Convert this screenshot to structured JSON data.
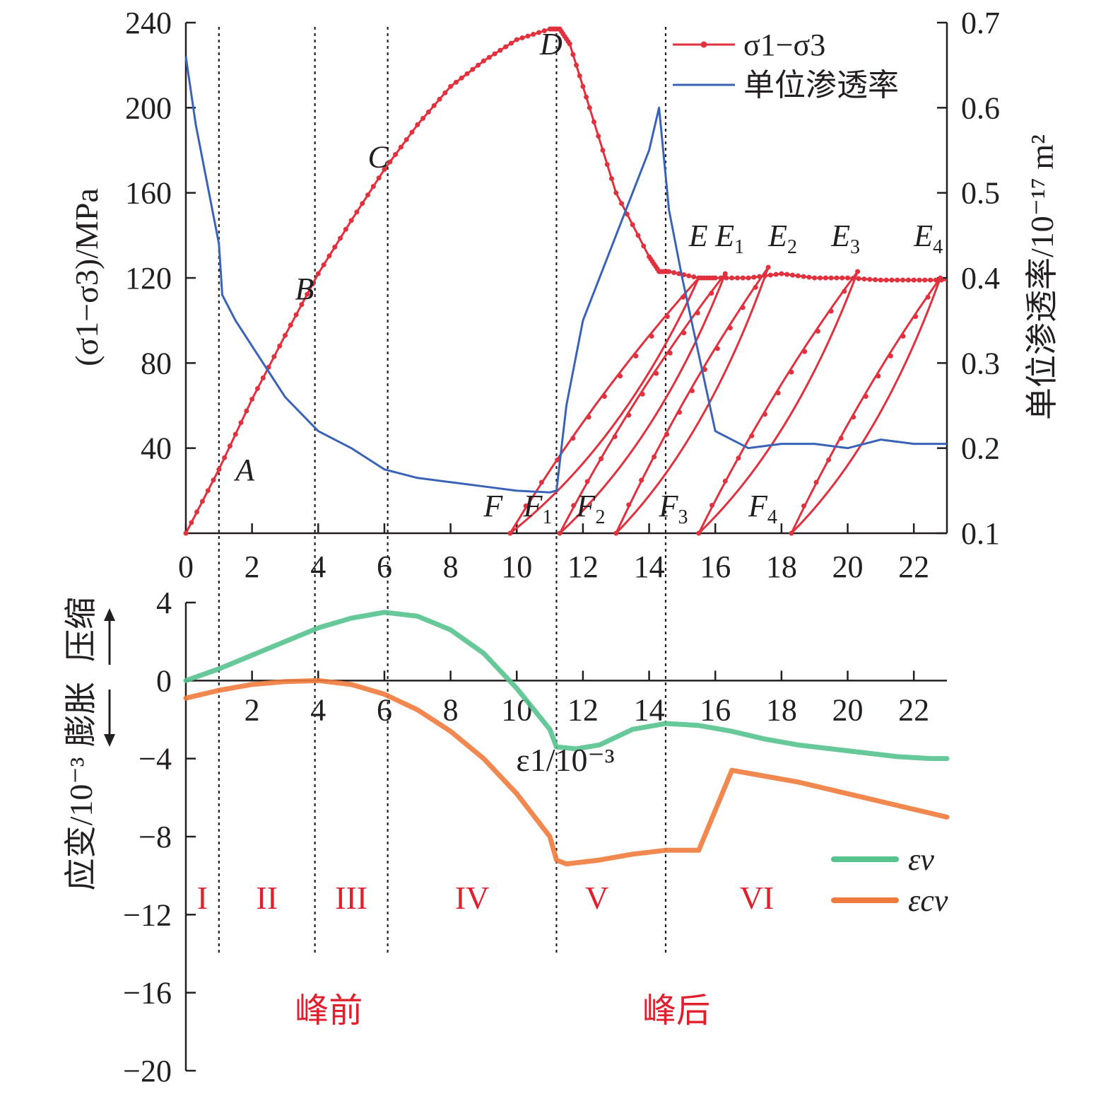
{
  "colors": {
    "deviatoric": "#e0313e",
    "permeability": "#3a63b8",
    "ev": "#56c38e",
    "ecv": "#ee7b3d",
    "axis": "#231f20",
    "label_red": "#e0202e"
  },
  "chart_data": [
    {
      "id": "stress_permeability",
      "type": "line",
      "xlabel": "ε1/10⁻³",
      "ylabel_left": "(σ1−σ3)/MPa",
      "ylabel_right": "单位渗透率/10⁻¹⁷ m²",
      "xlim": [
        0,
        23
      ],
      "ylim_left": [
        0,
        240
      ],
      "ylim_right": [
        0.1,
        0.7
      ],
      "xticks": [
        "0",
        "2",
        "4",
        "6",
        "8",
        "10",
        "12",
        "14",
        "16",
        "18",
        "20",
        "22"
      ],
      "yticks_left": [
        "40",
        "80",
        "120",
        "160",
        "200",
        "240"
      ],
      "yticks_right": [
        "0.1",
        "0.2",
        "0.3",
        "0.4",
        "0.5",
        "0.6",
        "0.7"
      ],
      "legend": [
        "σ1−σ3",
        "单位渗透率"
      ],
      "legend_position": "top-right",
      "series": [
        {
          "name": "σ1−σ3",
          "axis": "left",
          "x": [
            0,
            1,
            2,
            3,
            4,
            5,
            6,
            7,
            8,
            9,
            10,
            11,
            11.3,
            11.6,
            12.2,
            13,
            14,
            14.3,
            14.6,
            15.5,
            16,
            17,
            18,
            19,
            20,
            21,
            22,
            23
          ],
          "y": [
            0,
            30,
            63,
            93,
            122,
            147,
            171,
            192,
            210,
            222,
            232,
            237,
            237,
            230,
            200,
            160,
            130,
            123,
            123,
            120,
            120,
            120,
            122,
            120,
            120,
            119,
            119,
            119
          ]
        },
        {
          "name": "单位渗透率",
          "axis": "right",
          "x": [
            0,
            0.3,
            0.6,
            1,
            1.1,
            1.5,
            2,
            3,
            4,
            5,
            6,
            7,
            8,
            9,
            10,
            11,
            11.2,
            11.5,
            12,
            13,
            14,
            14.3,
            14.6,
            15,
            16,
            17,
            18,
            19,
            20,
            21,
            22,
            23
          ],
          "y": [
            0.66,
            0.58,
            0.52,
            0.44,
            0.38,
            0.35,
            0.32,
            0.26,
            0.22,
            0.2,
            0.175,
            0.165,
            0.16,
            0.155,
            0.15,
            0.148,
            0.15,
            0.25,
            0.35,
            0.45,
            0.55,
            0.6,
            0.48,
            0.4,
            0.22,
            0.2,
            0.205,
            0.205,
            0.2,
            0.21,
            0.205,
            0.205
          ]
        }
      ],
      "unload_cycles": [
        {
          "name": "F",
          "x_start": 9.8,
          "x_peak": 15.5,
          "y_peak": 120
        },
        {
          "name": "F1",
          "x_start": 11.3,
          "x_peak": 16.3,
          "y_peak": 122
        },
        {
          "name": "F2",
          "x_start": 13.0,
          "x_peak": 17.6,
          "y_peak": 125
        },
        {
          "name": "F3",
          "x_start": 15.5,
          "x_peak": 20.3,
          "y_peak": 123
        },
        {
          "name": "F4",
          "x_start": 18.3,
          "x_peak": 22.8,
          "y_peak": 120
        }
      ],
      "point_labels": [
        {
          "text": "A",
          "sub": "",
          "x": 1.5,
          "y": 25
        },
        {
          "text": "B",
          "sub": "",
          "x": 3.3,
          "y": 110
        },
        {
          "text": "C",
          "sub": "",
          "x": 5.5,
          "y": 172
        },
        {
          "text": "D",
          "sub": "",
          "x": 10.7,
          "y": 225
        },
        {
          "text": "E",
          "sub": "",
          "x": 15.2,
          "y": 135
        },
        {
          "text": "E",
          "sub": "1",
          "x": 16.0,
          "y": 135
        },
        {
          "text": "E",
          "sub": "2",
          "x": 17.6,
          "y": 135
        },
        {
          "text": "E",
          "sub": "3",
          "x": 19.5,
          "y": 135
        },
        {
          "text": "E",
          "sub": "4",
          "x": 22.0,
          "y": 135
        },
        {
          "text": "F",
          "sub": "",
          "x": 9.0,
          "y": 8
        },
        {
          "text": "F",
          "sub": "1",
          "x": 10.2,
          "y": 8
        },
        {
          "text": "F",
          "sub": "2",
          "x": 11.8,
          "y": 8
        },
        {
          "text": "F",
          "sub": "3",
          "x": 14.3,
          "y": 8
        },
        {
          "text": "F",
          "sub": "4",
          "x": 17.0,
          "y": 8
        }
      ],
      "stage_boundaries": [
        1.0,
        3.9,
        6.1,
        11.2,
        14.5
      ]
    },
    {
      "id": "strain",
      "type": "line",
      "xlabel": "",
      "ylabel": "应变/10⁻³ 膨胀 压缩",
      "ylabel_main": "应变/10⁻³",
      "ylabel_expand": "膨胀",
      "ylabel_compress": "压缩",
      "xlim": [
        0,
        23
      ],
      "ylim": [
        -20,
        4
      ],
      "xticks": [
        "2",
        "4",
        "6",
        "8",
        "10",
        "12",
        "14",
        "16",
        "18",
        "20",
        "22"
      ],
      "yticks": [
        "4",
        "0",
        "−4",
        "−8",
        "−12",
        "−16",
        "−20"
      ],
      "legend": [
        "εv",
        "εcv"
      ],
      "legend_position": "bottom-right",
      "series": [
        {
          "name": "εv",
          "x": [
            0,
            1,
            2,
            3,
            4,
            5,
            6,
            7,
            8,
            9,
            10,
            11,
            11.2,
            11.8,
            12.5,
            13.5,
            14.5,
            15.5,
            16.5,
            17.5,
            18.5,
            19.5,
            20.5,
            21.5,
            22.5,
            23
          ],
          "y": [
            0,
            0.6,
            1.3,
            2.0,
            2.7,
            3.2,
            3.5,
            3.3,
            2.6,
            1.4,
            -0.4,
            -2.5,
            -3.4,
            -3.5,
            -3.3,
            -2.5,
            -2.2,
            -2.3,
            -2.6,
            -3.0,
            -3.3,
            -3.5,
            -3.7,
            -3.9,
            -4.0,
            -4.0
          ]
        },
        {
          "name": "εcv",
          "x": [
            0,
            1,
            2,
            3,
            4,
            5,
            6,
            7,
            8,
            9,
            10,
            11,
            11.2,
            11.5,
            12.5,
            13.5,
            14.5,
            15.5,
            16.5,
            17.5,
            18.5,
            19.5,
            20.5,
            21.5,
            22.5,
            23
          ],
          "y": [
            -0.9,
            -0.5,
            -0.2,
            -0.05,
            0,
            -0.2,
            -0.7,
            -1.5,
            -2.6,
            -4.0,
            -5.8,
            -8.0,
            -9.2,
            -9.4,
            -9.2,
            -8.9,
            -8.7,
            -8.7,
            -4.6,
            -4.9,
            -5.2,
            -5.6,
            -6.0,
            -6.4,
            -6.8,
            -7.0
          ]
        }
      ],
      "stage_labels": [
        "I",
        "II",
        "III",
        "IV",
        "V",
        "VI"
      ],
      "region_labels": [
        "峰前",
        "峰后"
      ]
    }
  ]
}
